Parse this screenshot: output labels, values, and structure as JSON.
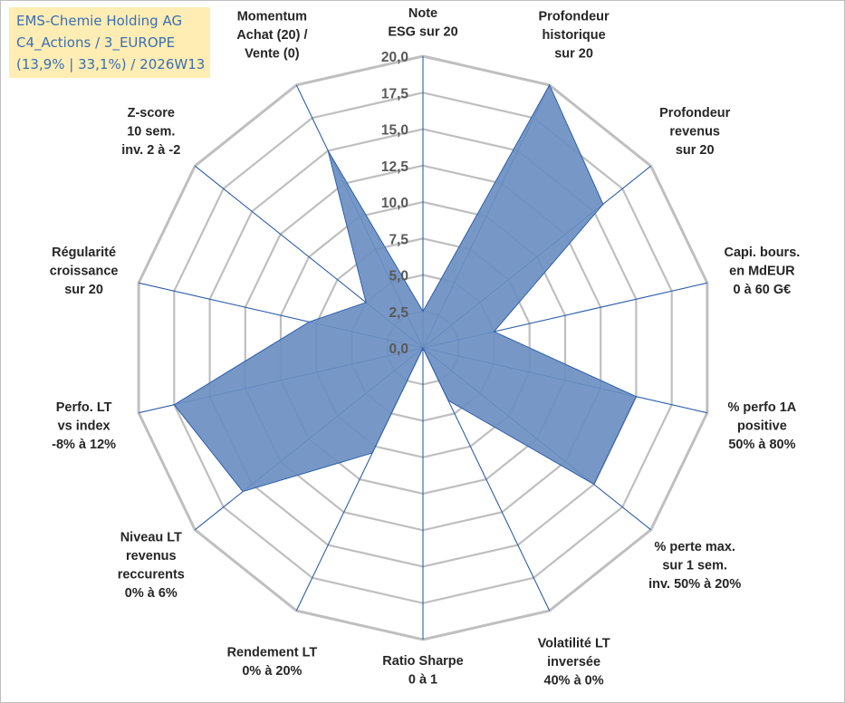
{
  "title": {
    "line1": "EMS-Chemie Holding AG",
    "line2": "C4_Actions / 3_EUROPE",
    "line3": "(13,9% | 33,1%) / 2026W13"
  },
  "colors": {
    "fill": "#6b8fc2",
    "stroke": "#2e5fa8",
    "grid": "#bfbfbf",
    "spoke": "#2e5fa8",
    "title_bg": "#ffedb3",
    "title_text": "#3a6fb3"
  },
  "chart_data": {
    "type": "radar",
    "title": "EMS-Chemie Holding AG",
    "range": [
      0,
      20
    ],
    "tick_step": 2.5,
    "tick_labels": [
      "0,0",
      "2,5",
      "5,0",
      "7,5",
      "10,0",
      "12,5",
      "15,0",
      "17,5",
      "20,0"
    ],
    "axes": [
      {
        "label": [
          "Note",
          "ESG sur 20"
        ],
        "value": 2.5
      },
      {
        "label": [
          "Profondeur",
          "historique",
          "sur 20"
        ],
        "value": 20.0
      },
      {
        "label": [
          "Profondeur",
          "revenus",
          "sur 20"
        ],
        "value": 15.8
      },
      {
        "label": [
          "Capi. bours.",
          "en MdEUR",
          "0 à 60 G€"
        ],
        "value": 5.0
      },
      {
        "label": [
          "% perfo 1A",
          "positive",
          "50% à 80%"
        ],
        "value": 15.0
      },
      {
        "label": [
          "% perte max.",
          "sur 1 sem.",
          "inv. 50% à 20%"
        ],
        "value": 15.0
      },
      {
        "label": [
          "Volatilité LT",
          "inversée",
          "40% à 0%"
        ],
        "value": 4.0
      },
      {
        "label": [
          "Ratio Sharpe",
          "0 à 1"
        ],
        "value": 0.0
      },
      {
        "label": [
          "Rendement LT",
          "0% à 20%"
        ],
        "value": 8.0
      },
      {
        "label": [
          "Niveau LT",
          "revenus",
          "reccurents",
          "0% à 6%"
        ],
        "value": 15.8
      },
      {
        "label": [
          "Perfo. LT",
          "vs index",
          "-8% à 12%"
        ],
        "value": 17.5
      },
      {
        "label": [
          "Régularité",
          "croissance",
          "sur 20"
        ],
        "value": 8.0
      },
      {
        "label": [
          "Z-score",
          "10 sem.",
          "inv. 2 à -2"
        ],
        "value": 5.0
      },
      {
        "label": [
          "Momentum",
          "Achat (20) /",
          "Vente (0)"
        ],
        "value": 15.0
      }
    ]
  }
}
